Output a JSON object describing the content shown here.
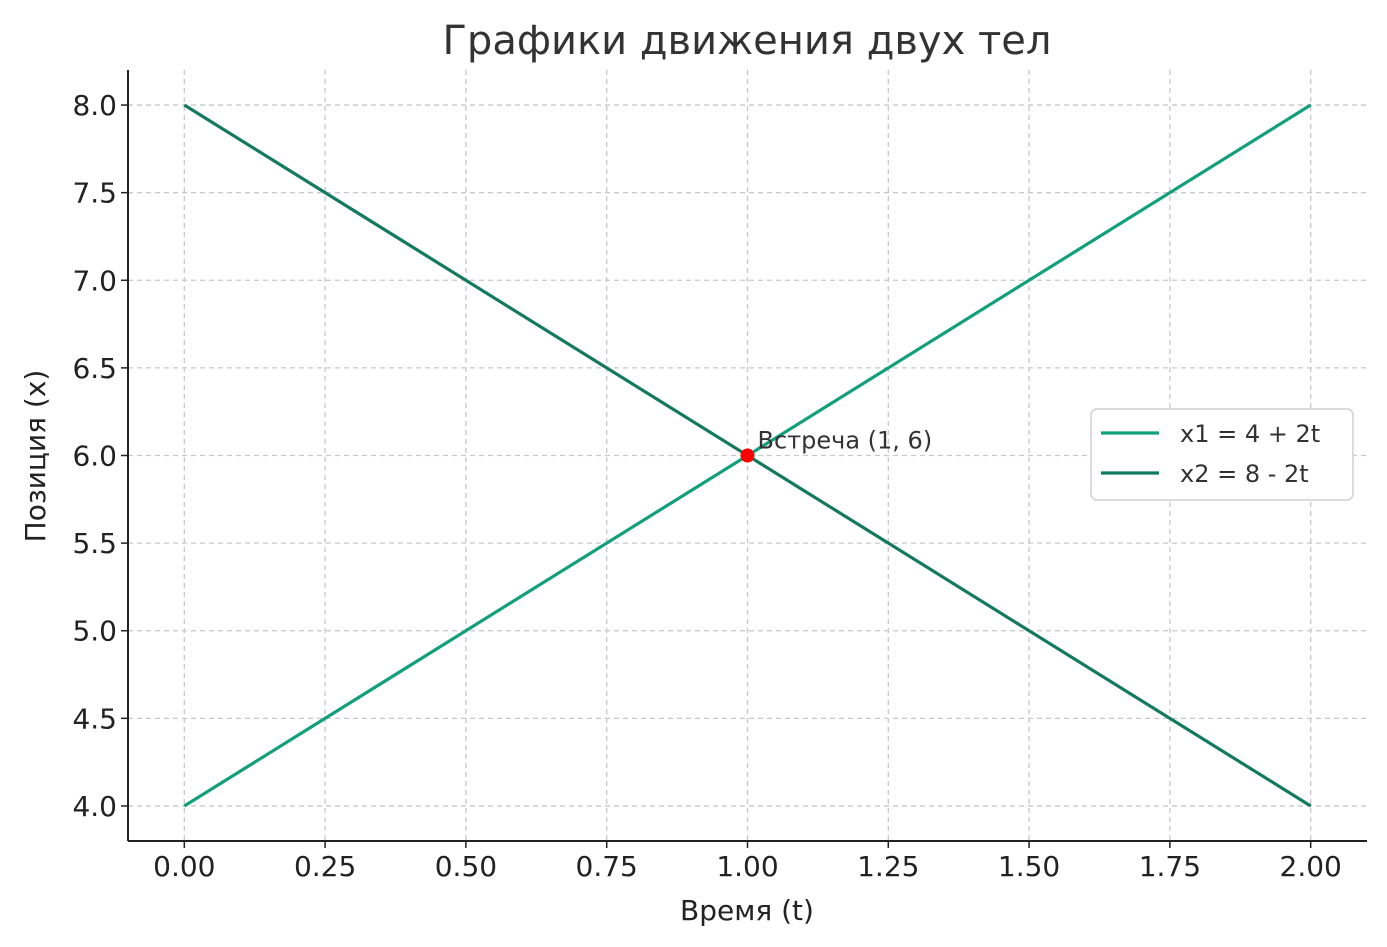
{
  "chart_data": {
    "type": "line",
    "title": "Графики движения двух тел",
    "xlabel": "Время (t)",
    "ylabel": "Позиция (x)",
    "xlim": [
      -0.1,
      2.1
    ],
    "ylim": [
      3.8,
      8.2
    ],
    "xticks": [
      0.0,
      0.25,
      0.5,
      0.75,
      1.0,
      1.25,
      1.5,
      1.75,
      2.0
    ],
    "xtick_labels": [
      "0.00",
      "0.25",
      "0.50",
      "0.75",
      "1.00",
      "1.25",
      "1.50",
      "1.75",
      "2.00"
    ],
    "yticks": [
      4.0,
      4.5,
      5.0,
      5.5,
      6.0,
      6.5,
      7.0,
      7.5,
      8.0
    ],
    "ytick_labels": [
      "4.0",
      "4.5",
      "5.0",
      "5.5",
      "6.0",
      "6.5",
      "7.0",
      "7.5",
      "8.0"
    ],
    "grid": true,
    "legend_position": "right",
    "series": [
      {
        "name": "x1 = 4 + 2t",
        "color": "#12a07c",
        "x": [
          0,
          2
        ],
        "y": [
          4,
          8
        ]
      },
      {
        "name": "x2 = 8 - 2t",
        "color": "#137a5f",
        "x": [
          0,
          2
        ],
        "y": [
          8,
          4
        ]
      }
    ],
    "annotations": [
      {
        "text": "Встреча (1, 6)",
        "x": 1,
        "y": 6,
        "color": "#ff0000"
      }
    ]
  }
}
